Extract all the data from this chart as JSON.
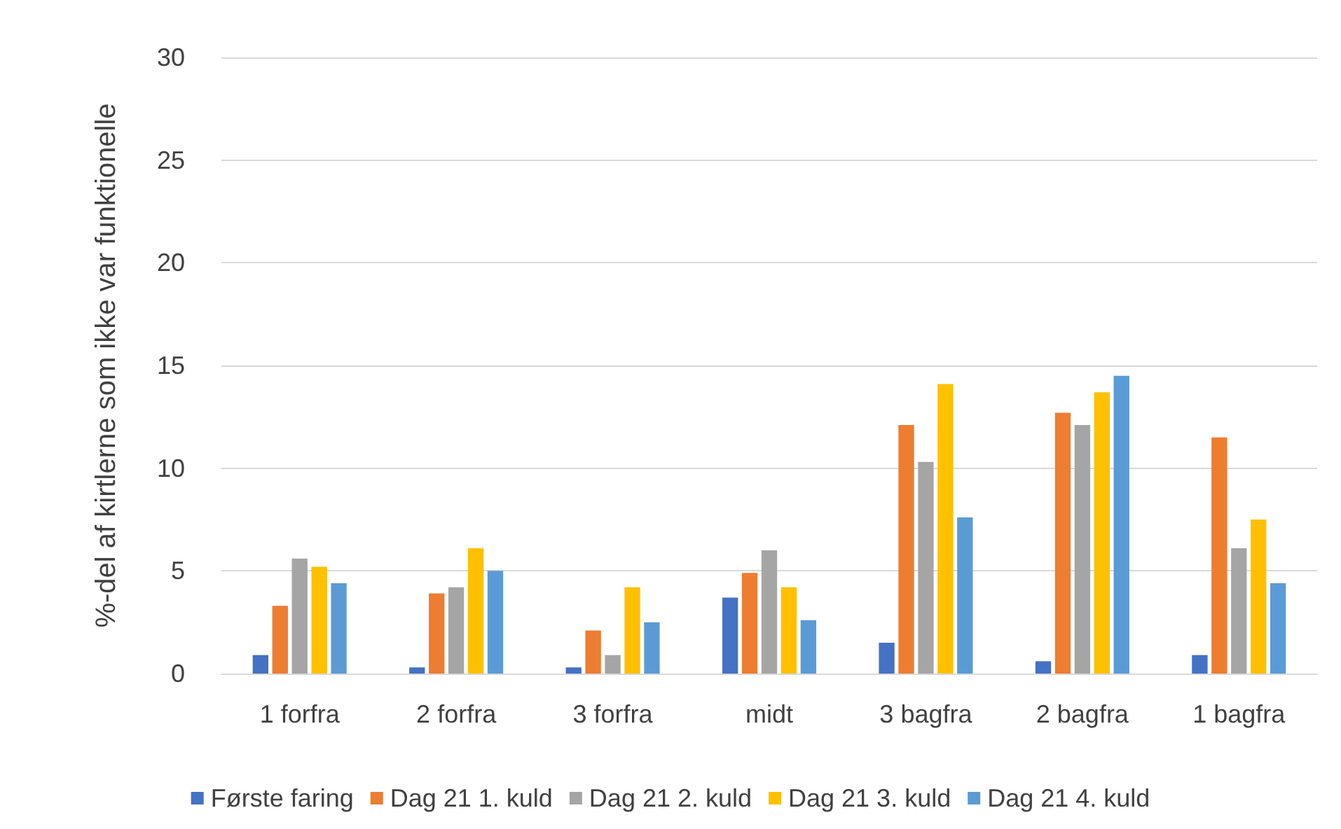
{
  "chart_data": {
    "type": "bar",
    "ylabel": "%-del af kirtlerne som ikke var funktionelle",
    "categories": [
      "1 forfra",
      "2 forfra",
      "3 forfra",
      "midt",
      "3 bagfra",
      "2 bagfra",
      "1 bagfra"
    ],
    "series": [
      {
        "name": "Første faring",
        "color": "#4472c4",
        "values": [
          0.9,
          0.3,
          0.3,
          3.7,
          1.5,
          0.6,
          0.9
        ]
      },
      {
        "name": "Dag 21 1. kuld",
        "color": "#ed7d31",
        "values": [
          3.3,
          3.9,
          2.1,
          4.9,
          12.1,
          12.7,
          11.5
        ]
      },
      {
        "name": "Dag 21 2. kuld",
        "color": "#a5a5a5",
        "values": [
          5.6,
          4.2,
          0.9,
          6.0,
          10.3,
          12.1,
          6.1
        ]
      },
      {
        "name": "Dag 21 3. kuld",
        "color": "#ffc000",
        "values": [
          5.2,
          6.1,
          4.2,
          4.2,
          14.1,
          13.7,
          7.5
        ]
      },
      {
        "name": "Dag 21 4. kuld",
        "color": "#5b9bd5",
        "values": [
          4.4,
          5.0,
          2.5,
          2.6,
          7.6,
          14.5,
          4.4
        ]
      }
    ],
    "ylim": [
      0,
      30
    ],
    "yticks": [
      0,
      5,
      10,
      15,
      20,
      25,
      30
    ],
    "grid": "y",
    "legend": "bottom"
  }
}
